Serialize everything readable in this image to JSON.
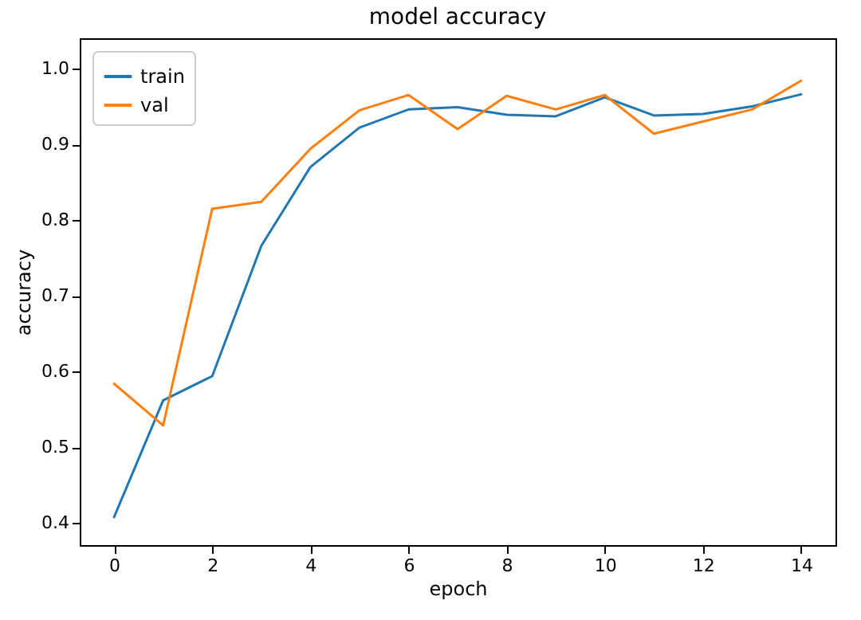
{
  "chart_data": {
    "type": "line",
    "title": "model accuracy",
    "xlabel": "epoch",
    "ylabel": "accuracy",
    "x": [
      0,
      1,
      2,
      3,
      4,
      5,
      6,
      7,
      8,
      9,
      10,
      11,
      12,
      13,
      14
    ],
    "series": [
      {
        "name": "train",
        "color": "#1f77b4",
        "values": [
          0.408,
          0.562,
          0.594,
          0.766,
          0.87,
          0.922,
          0.946,
          0.949,
          0.939,
          0.937,
          0.962,
          0.938,
          0.94,
          0.95,
          0.966
        ]
      },
      {
        "name": "val",
        "color": "#ff7f0e",
        "values": [
          0.584,
          0.529,
          0.815,
          0.824,
          0.894,
          0.945,
          0.965,
          0.92,
          0.964,
          0.946,
          0.965,
          0.914,
          0.93,
          0.946,
          0.984
        ]
      }
    ],
    "xlim": [
      -0.7,
      14.7
    ],
    "xticks": [
      0,
      2,
      4,
      6,
      8,
      10,
      12,
      14
    ],
    "ylim": [
      0.371,
      1.04
    ],
    "yticks": [
      0.4,
      0.5,
      0.6,
      0.7,
      0.8,
      0.9,
      {
        "value": 1,
        "label": "1.0"
      }
    ],
    "legend": "top left",
    "grid": false,
    "marker": "none",
    "line_style": "solid"
  }
}
